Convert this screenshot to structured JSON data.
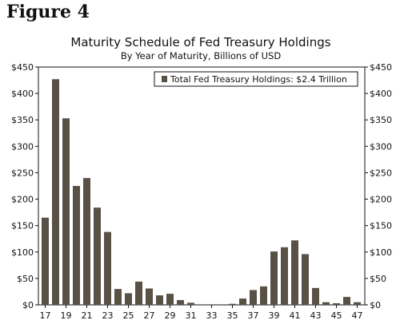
{
  "figure_label": "Figure 4",
  "chart_data": {
    "type": "bar",
    "title": "Maturity Schedule of Fed Treasury Holdings",
    "subtitle": "By Year of Maturity, Billions of USD",
    "xlabel": "",
    "ylabel": "",
    "ylim": [
      0,
      450
    ],
    "y_ticks": [
      "$0",
      "$50",
      "$100",
      "$150",
      "$200",
      "$250",
      "$300",
      "$350",
      "$400",
      "$450"
    ],
    "y_tick_values": [
      0,
      50,
      100,
      150,
      200,
      250,
      300,
      350,
      400,
      450
    ],
    "x_tick_labels": [
      "17",
      "19",
      "21",
      "23",
      "25",
      "27",
      "29",
      "31",
      "33",
      "35",
      "37",
      "39",
      "41",
      "43",
      "45",
      "47"
    ],
    "categories": [
      "17",
      "18",
      "19",
      "20",
      "21",
      "22",
      "23",
      "24",
      "25",
      "26",
      "27",
      "28",
      "29",
      "30",
      "31",
      "32",
      "33",
      "34",
      "35",
      "36",
      "37",
      "38",
      "39",
      "40",
      "41",
      "42",
      "43",
      "44",
      "45",
      "46",
      "47"
    ],
    "series": [
      {
        "name": "Total Fed Treasury Holdings: $2.4 Trillion",
        "color": "#5a5146",
        "values": [
          165,
          427,
          353,
          225,
          240,
          184,
          138,
          30,
          22,
          44,
          31,
          18,
          21,
          9,
          4,
          0,
          0,
          0,
          2,
          12,
          28,
          35,
          101,
          109,
          122,
          96,
          32,
          5,
          3,
          15,
          5
        ]
      }
    ],
    "legend_position": "top-right",
    "grid": false,
    "right_axis_duplicate": true
  }
}
